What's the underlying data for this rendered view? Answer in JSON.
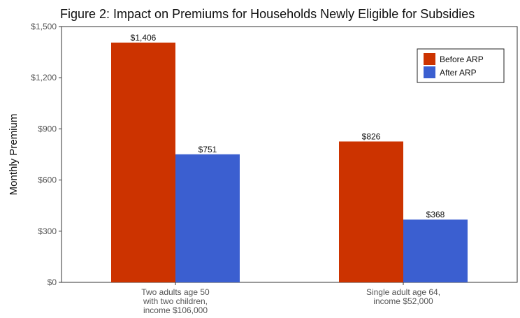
{
  "chart_data": {
    "type": "bar",
    "title": "Figure 2: Impact on Premiums for Households Newly Eligible for Subsidies",
    "xlabel": "",
    "ylabel": "Monthly Premium",
    "ylim": [
      0,
      1500
    ],
    "y_ticks": [
      0,
      300,
      600,
      900,
      1200,
      1500
    ],
    "y_tick_labels": [
      "$0",
      "$300",
      "$600",
      "$900",
      "$1,200",
      "$1,500"
    ],
    "grid": false,
    "legend_position": "top-right",
    "categories": [
      [
        "Two adults age 50",
        "with two children,",
        "income $106,000"
      ],
      [
        "Single adult age 64,",
        "income $52,000"
      ]
    ],
    "series": [
      {
        "name": "Before ARP",
        "color": "#cc3300",
        "values": [
          1406,
          826
        ],
        "labels": [
          "$1,406",
          "$826"
        ]
      },
      {
        "name": "After ARP",
        "color": "#3b5fd0",
        "values": [
          751,
          368
        ],
        "labels": [
          "$751",
          "$368"
        ]
      }
    ]
  }
}
